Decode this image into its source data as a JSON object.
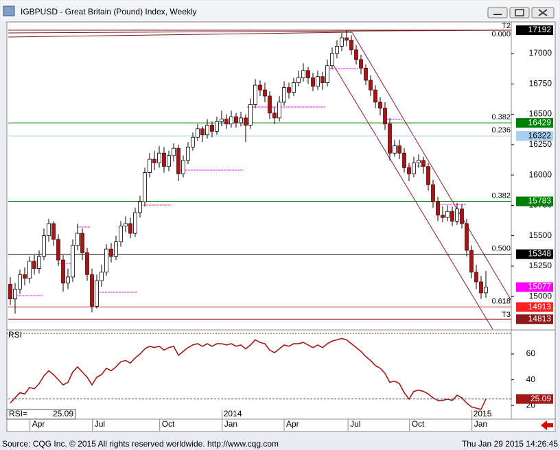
{
  "window": {
    "title": "IGBPUSD - Great Britain (Pound) Index, Weekly"
  },
  "footer": {
    "source": "Source: CQG Inc. © 2015 All rights reserved worldwide. http://www.cqg.com",
    "timestamp": "Thu Jan 29 2015 14:26:45"
  },
  "chart_data": {
    "type": "candlestick",
    "up_color": "#ffffff",
    "down_color": "#a01818",
    "last_price_color": "#ff00ff",
    "ylim": [
      14730,
      17260
    ],
    "yticks": [
      15000,
      15250,
      15500,
      15750,
      16000,
      16250,
      16500,
      16750,
      17000
    ],
    "xticks": [
      {
        "value": 4.1,
        "label": "Apr"
      },
      {
        "value": 17.1,
        "label": "Jul"
      },
      {
        "value": 31.1,
        "label": "Oct"
      },
      {
        "value": 44.1,
        "label": "Jan"
      },
      {
        "value": 57,
        "label": "Apr"
      },
      {
        "value": 70.3,
        "label": "Jul"
      },
      {
        "value": 83.1,
        "label": "Oct"
      },
      {
        "value": 96.1,
        "label": "Jan"
      }
    ],
    "year_ticks": [
      {
        "value": 44.1,
        "label": "2014"
      },
      {
        "value": 96.1,
        "label": "2015"
      }
    ],
    "levels": [
      {
        "value": 17192,
        "ratio": "0.000",
        "tag": "T2",
        "color": "#000000",
        "line_color": "#7a1a1a"
      },
      {
        "value": 16429,
        "ratio": "0.382",
        "color": "#008000",
        "line_color": "#008000"
      },
      {
        "value": 16322,
        "ratio": "0.236",
        "color": "#a9cff0",
        "line_color": "#a9cff0"
      },
      {
        "value": 15783,
        "ratio": "0.382",
        "color": "#008000",
        "line_color": "#008000"
      },
      {
        "value": 15348,
        "ratio": "0.500",
        "color": "#000000",
        "line_color": "#000000"
      },
      {
        "value": 14913,
        "ratio": "0.618",
        "color": "#ff2020",
        "line_color": "#c02020"
      },
      {
        "value": 14813,
        "tag": "T3",
        "color": "#8b1a1a",
        "line_color": "#8b1a1a"
      }
    ],
    "ohlc": [
      [
        15100,
        15160,
        14930,
        14980
      ],
      [
        14980,
        15110,
        14860,
        15060
      ],
      [
        15060,
        15220,
        15020,
        15180
      ],
      [
        15180,
        15240,
        15090,
        15150
      ],
      [
        15150,
        15330,
        15110,
        15290
      ],
      [
        15290,
        15340,
        15180,
        15230
      ],
      [
        15230,
        15380,
        15190,
        15330
      ],
      [
        15330,
        15560,
        15300,
        15500
      ],
      [
        15500,
        15640,
        15450,
        15600
      ],
      [
        15600,
        15620,
        15420,
        15470
      ],
      [
        15470,
        15510,
        15250,
        15300
      ],
      [
        15300,
        15340,
        15040,
        15110
      ],
      [
        15110,
        15230,
        15060,
        15160
      ],
      [
        15160,
        15470,
        15120,
        15420
      ],
      [
        15420,
        15600,
        15380,
        15520
      ],
      [
        15520,
        15560,
        15300,
        15360
      ],
      [
        15360,
        15400,
        15130,
        15180
      ],
      [
        15180,
        15230,
        14870,
        14920
      ],
      [
        14920,
        15180,
        14900,
        15130
      ],
      [
        15130,
        15260,
        15080,
        15200
      ],
      [
        15200,
        15430,
        15170,
        15390
      ],
      [
        15390,
        15440,
        15280,
        15330
      ],
      [
        15330,
        15500,
        15300,
        15450
      ],
      [
        15450,
        15620,
        15410,
        15580
      ],
      [
        15580,
        15660,
        15530,
        15600
      ],
      [
        15600,
        15650,
        15480,
        15520
      ],
      [
        15520,
        15730,
        15490,
        15690
      ],
      [
        15690,
        15830,
        15650,
        15780
      ],
      [
        15780,
        16060,
        15740,
        16020
      ],
      [
        16020,
        16180,
        15980,
        16130
      ],
      [
        16130,
        16200,
        16040,
        16100
      ],
      [
        16100,
        16240,
        16060,
        16180
      ],
      [
        16180,
        16230,
        16020,
        16070
      ],
      [
        16070,
        16200,
        16030,
        16160
      ],
      [
        16160,
        16260,
        16110,
        16220
      ],
      [
        16220,
        16250,
        15950,
        16010
      ],
      [
        16010,
        16160,
        15980,
        16120
      ],
      [
        16120,
        16270,
        16090,
        16230
      ],
      [
        16230,
        16350,
        16200,
        16310
      ],
      [
        16310,
        16420,
        16280,
        16380
      ],
      [
        16380,
        16400,
        16270,
        16330
      ],
      [
        16330,
        16460,
        16300,
        16410
      ],
      [
        16410,
        16440,
        16310,
        16360
      ],
      [
        16360,
        16480,
        16330,
        16440
      ],
      [
        16440,
        16530,
        16400,
        16460
      ],
      [
        16460,
        16500,
        16380,
        16420
      ],
      [
        16420,
        16530,
        16390,
        16480
      ],
      [
        16480,
        16510,
        16390,
        16430
      ],
      [
        16430,
        16520,
        16400,
        16470
      ],
      [
        16470,
        16500,
        16270,
        16410
      ],
      [
        16410,
        16630,
        16380,
        16580
      ],
      [
        16580,
        16790,
        16550,
        16740
      ],
      [
        16740,
        16780,
        16650,
        16700
      ],
      [
        16700,
        16760,
        16600,
        16650
      ],
      [
        16650,
        16690,
        16460,
        16510
      ],
      [
        16510,
        16560,
        16420,
        16470
      ],
      [
        16470,
        16650,
        16440,
        16600
      ],
      [
        16600,
        16770,
        16570,
        16720
      ],
      [
        16720,
        16760,
        16630,
        16680
      ],
      [
        16680,
        16800,
        16650,
        16760
      ],
      [
        16760,
        16860,
        16730,
        16800
      ],
      [
        16800,
        16920,
        16770,
        16860
      ],
      [
        16860,
        16890,
        16750,
        16800
      ],
      [
        16800,
        16840,
        16690,
        16730
      ],
      [
        16730,
        16860,
        16700,
        16810
      ],
      [
        16810,
        16850,
        16700,
        16760
      ],
      [
        16760,
        16950,
        16730,
        16900
      ],
      [
        16900,
        17050,
        16870,
        17000
      ],
      [
        17000,
        17110,
        16960,
        17060
      ],
      [
        17060,
        17170,
        17020,
        17130
      ],
      [
        17130,
        17192,
        17060,
        17110
      ],
      [
        17110,
        17150,
        16990,
        17030
      ],
      [
        17030,
        17070,
        16910,
        16950
      ],
      [
        16950,
        16990,
        16830,
        16880
      ],
      [
        16880,
        16910,
        16740,
        16780
      ],
      [
        16780,
        16820,
        16650,
        16700
      ],
      [
        16700,
        16740,
        16550,
        16600
      ],
      [
        16600,
        16640,
        16490,
        16550
      ],
      [
        16550,
        16600,
        16370,
        16420
      ],
      [
        16420,
        16470,
        16120,
        16180
      ],
      [
        16180,
        16290,
        16150,
        16240
      ],
      [
        16240,
        16290,
        16130,
        16180
      ],
      [
        16180,
        16220,
        16020,
        16060
      ],
      [
        16060,
        16100,
        15950,
        16010
      ],
      [
        16010,
        16150,
        15980,
        16100
      ],
      [
        16100,
        16170,
        16060,
        16120
      ],
      [
        16120,
        16150,
        16010,
        16070
      ],
      [
        16070,
        16100,
        15870,
        15920
      ],
      [
        15920,
        15960,
        15730,
        15780
      ],
      [
        15780,
        15820,
        15620,
        15670
      ],
      [
        15670,
        15740,
        15610,
        15650
      ],
      [
        15650,
        15750,
        15620,
        15700
      ],
      [
        15700,
        15740,
        15580,
        15620
      ],
      [
        15620,
        15770,
        15590,
        15720
      ],
      [
        15720,
        15760,
        15560,
        15600
      ],
      [
        15600,
        15640,
        15330,
        15380
      ],
      [
        15380,
        15420,
        15150,
        15200
      ],
      [
        15200,
        15260,
        15060,
        15120
      ],
      [
        15120,
        15170,
        14980,
        15030
      ],
      [
        15030,
        15210,
        14990,
        15077
      ]
    ],
    "rsi": {
      "label": "RSI",
      "readout_label": "RSI=",
      "color": "#a01818",
      "ylim": [
        10,
        76
      ],
      "yticks": [
        20,
        40,
        60
      ],
      "values": [
        22,
        26,
        30,
        29,
        34,
        33,
        37,
        43,
        47,
        44,
        40,
        36,
        38,
        46,
        50,
        46,
        42,
        36,
        42,
        44,
        49,
        47,
        50,
        54,
        55,
        53,
        57,
        60,
        64,
        66,
        65,
        66,
        63,
        65,
        66,
        59,
        62,
        65,
        67,
        68,
        66,
        68,
        66,
        68,
        68,
        67,
        68,
        66,
        67,
        64,
        67,
        71,
        69,
        68,
        63,
        61,
        64,
        67,
        66,
        68,
        68,
        69,
        67,
        65,
        67,
        65,
        68,
        70,
        71,
        72,
        71,
        68,
        65,
        62,
        58,
        55,
        51,
        49,
        45,
        38,
        39,
        37,
        30,
        25,
        31,
        32,
        31,
        29,
        26,
        24,
        24,
        25,
        24,
        28,
        26,
        22,
        19,
        18,
        17,
        25.09
      ]
    }
  }
}
